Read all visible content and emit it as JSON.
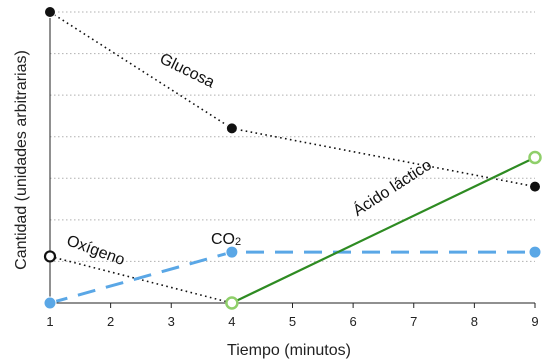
{
  "chart_data": {
    "type": "line",
    "xlabel": "Tiempo (minutos)",
    "ylabel": "Cantidad (unidades arbitrarias)",
    "xlim": [
      1,
      9
    ],
    "ylim": [
      0,
      10
    ],
    "x_ticks": [
      1,
      2,
      3,
      4,
      5,
      6,
      7,
      8,
      9
    ],
    "grid": "horizontal dotted",
    "legend": "none",
    "series": [
      {
        "name": "Glucosa",
        "color": "#111111",
        "style": "dotted",
        "points": [
          {
            "x": 1,
            "y": 10
          },
          {
            "x": 4,
            "y": 6
          },
          {
            "x": 9,
            "y": 4
          }
        ]
      },
      {
        "name": "Oxígeno",
        "color": "#111111",
        "style": "dotted",
        "points": [
          {
            "x": 1,
            "y": 1.6
          },
          {
            "x": 4,
            "y": 0
          }
        ]
      },
      {
        "name": "CO2",
        "label_main": "CO",
        "label_sub": "2",
        "color": "#5aa7e6",
        "style": "dashed",
        "points": [
          {
            "x": 1,
            "y": 0
          },
          {
            "x": 4,
            "y": 1.75
          },
          {
            "x": 9,
            "y": 1.75
          }
        ]
      },
      {
        "name": "Ácido láctico",
        "color": "#2e8b22",
        "style": "solid",
        "points": [
          {
            "x": 4,
            "y": 0
          },
          {
            "x": 9,
            "y": 5
          }
        ]
      }
    ]
  }
}
